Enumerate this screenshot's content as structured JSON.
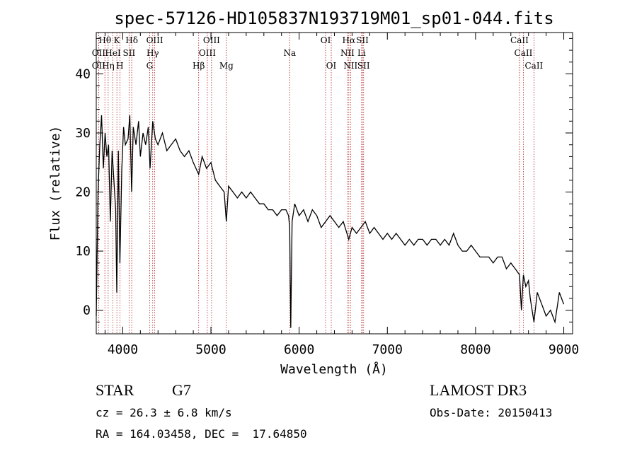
{
  "chart_data": {
    "type": "line",
    "title": "spec-57126-HD105837N193719M01_sp01-044.fits",
    "xlabel": "Wavelength (Å)",
    "ylabel": "Flux (relative)",
    "xlim": [
      3700,
      9100
    ],
    "ylim": [
      -4,
      47
    ],
    "xticks": [
      4000,
      5000,
      6000,
      7000,
      8000,
      9000
    ],
    "yticks": [
      0,
      10,
      20,
      30,
      40
    ],
    "line_color": "#000000",
    "marker_color": "#b22222",
    "series": [
      {
        "x": [
          3700,
          3720,
          3740,
          3760,
          3780,
          3800,
          3820,
          3840,
          3860,
          3880,
          3900,
          3920,
          3933,
          3950,
          3968,
          3990,
          4010,
          4030,
          4060,
          4080,
          4101,
          4120,
          4150,
          4180,
          4200,
          4230,
          4260,
          4290,
          4310,
          4340,
          4370,
          4400,
          4450,
          4500,
          4550,
          4600,
          4650,
          4700,
          4750,
          4800,
          4861,
          4900,
          4950,
          5000,
          5050,
          5100,
          5150,
          5175,
          5200,
          5250,
          5300,
          5350,
          5400,
          5450,
          5500,
          5550,
          5600,
          5650,
          5700,
          5750,
          5800,
          5850,
          5880,
          5893,
          5905,
          5920,
          5950,
          6000,
          6050,
          6100,
          6150,
          6200,
          6250,
          6300,
          6350,
          6400,
          6450,
          6500,
          6563,
          6600,
          6650,
          6700,
          6750,
          6800,
          6850,
          6900,
          6950,
          7000,
          7050,
          7100,
          7150,
          7200,
          7250,
          7300,
          7350,
          7400,
          7450,
          7500,
          7550,
          7600,
          7650,
          7700,
          7750,
          7800,
          7850,
          7900,
          7950,
          8000,
          8050,
          8100,
          8150,
          8200,
          8250,
          8300,
          8350,
          8400,
          8450,
          8498,
          8520,
          8542,
          8570,
          8600,
          8620,
          8662,
          8700,
          8750,
          8800,
          8850,
          8900,
          8950,
          9000
        ],
        "y": [
          -1,
          20,
          28,
          33,
          24,
          30,
          26,
          28,
          15,
          27,
          22,
          17,
          3,
          27,
          8,
          24,
          31,
          28,
          29,
          33,
          20,
          31,
          28,
          32,
          26,
          30,
          28,
          31,
          24,
          32,
          29,
          28,
          30,
          27,
          28,
          29,
          27,
          26,
          27,
          25,
          23,
          26,
          24,
          25,
          22,
          21,
          20,
          15,
          21,
          20,
          19,
          20,
          19,
          20,
          19,
          18,
          18,
          17,
          17,
          16,
          17,
          17,
          16,
          14,
          -3,
          15,
          18,
          16,
          17,
          15,
          17,
          16,
          14,
          15,
          16,
          15,
          14,
          15,
          12,
          14,
          13,
          14,
          15,
          13,
          14,
          13,
          12,
          13,
          12,
          13,
          12,
          11,
          12,
          11,
          12,
          12,
          11,
          12,
          12,
          11,
          12,
          11,
          13,
          11,
          10,
          10,
          11,
          10,
          9,
          9,
          9,
          8,
          9,
          9,
          7,
          8,
          7,
          6,
          0,
          6,
          4,
          5,
          2,
          -2,
          3,
          1,
          -1,
          0,
          -2,
          3,
          1
        ]
      }
    ],
    "spectral_lines": [
      {
        "label": "Hθ",
        "x": 3798,
        "row": 1
      },
      {
        "label": "K",
        "x": 3934,
        "row": 1
      },
      {
        "label": "Hδ",
        "x": 4102,
        "row": 1
      },
      {
        "label": "OIII",
        "x": 4363,
        "row": 1
      },
      {
        "label": "OIII",
        "x": 5007,
        "row": 1
      },
      {
        "label": "OI",
        "x": 6300,
        "row": 1
      },
      {
        "label": "Hα",
        "x": 6563,
        "row": 1
      },
      {
        "label": "SII",
        "x": 6717,
        "row": 1
      },
      {
        "label": "CaII",
        "x": 8498,
        "row": 1
      },
      {
        "label": "OII",
        "x": 3727,
        "row": 2
      },
      {
        "label": "HeI",
        "x": 3889,
        "row": 2
      },
      {
        "label": "SII",
        "x": 4072,
        "row": 2
      },
      {
        "label": "Hγ",
        "x": 4340,
        "row": 2
      },
      {
        "label": "OIII",
        "x": 4959,
        "row": 2
      },
      {
        "label": "Na",
        "x": 5893,
        "row": 2
      },
      {
        "label": "NII",
        "x": 6548,
        "row": 2
      },
      {
        "label": "Li",
        "x": 6708,
        "row": 2
      },
      {
        "label": "CaII",
        "x": 8542,
        "row": 2
      },
      {
        "label": "OII",
        "x": 3727,
        "row": 3
      },
      {
        "label": "Hη",
        "x": 3835,
        "row": 3
      },
      {
        "label": "H",
        "x": 3968,
        "row": 3
      },
      {
        "label": "G",
        "x": 4305,
        "row": 3
      },
      {
        "label": "Hβ",
        "x": 4861,
        "row": 3
      },
      {
        "label": "Mg",
        "x": 5175,
        "row": 3
      },
      {
        "label": "OI",
        "x": 6364,
        "row": 3
      },
      {
        "label": "NII",
        "x": 6583,
        "row": 3
      },
      {
        "label": "SII",
        "x": 6731,
        "row": 3
      },
      {
        "label": "CaII",
        "x": 8662,
        "row": 3
      }
    ]
  },
  "info": {
    "object_type": "STAR",
    "subclass": "G7",
    "survey": "LAMOST DR3",
    "redshift": "cz = 26.3 ± 6.8 km/s",
    "obs_date": "Obs-Date: 20150413",
    "coords": "RA = 164.03458, DEC =  17.64850"
  }
}
